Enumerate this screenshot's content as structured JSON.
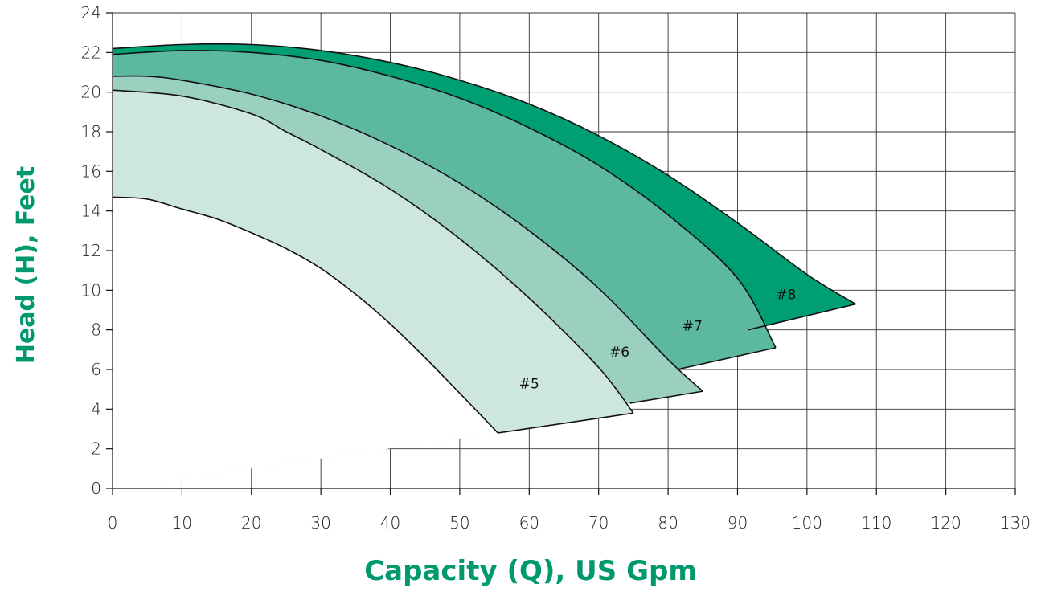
{
  "chart_data": {
    "type": "area",
    "title": "",
    "xlabel": "Capacity (Q), US Gpm",
    "ylabel": "Head (H), Feet",
    "xlim": [
      0,
      130
    ],
    "ylim": [
      0,
      24
    ],
    "x_ticks": [
      0,
      10,
      20,
      30,
      40,
      50,
      60,
      70,
      80,
      90,
      100,
      110,
      120,
      130
    ],
    "y_ticks": [
      0,
      2,
      4,
      6,
      8,
      10,
      12,
      14,
      16,
      18,
      20,
      22,
      24
    ],
    "grid": true,
    "series": [
      {
        "name": "#8",
        "color": "#009e73",
        "label_at": [
          97,
          9.8
        ],
        "upper": [
          [
            0,
            22.2
          ],
          [
            10,
            22.4
          ],
          [
            20,
            22.4
          ],
          [
            30,
            22.1
          ],
          [
            40,
            21.5
          ],
          [
            50,
            20.6
          ],
          [
            60,
            19.4
          ],
          [
            70,
            17.8
          ],
          [
            80,
            15.8
          ],
          [
            90,
            13.4
          ],
          [
            100,
            10.8
          ],
          [
            107,
            9.3
          ]
        ],
        "end_edge": [
          [
            107,
            9.3
          ],
          [
            91.5,
            8.0
          ]
        ]
      },
      {
        "name": "#7",
        "color": "#5cb9a0",
        "label_at": [
          83.5,
          8.2
        ],
        "upper": [
          [
            0,
            21.9
          ],
          [
            10,
            22.1
          ],
          [
            20,
            22.0
          ],
          [
            30,
            21.6
          ],
          [
            40,
            20.8
          ],
          [
            50,
            19.7
          ],
          [
            60,
            18.2
          ],
          [
            70,
            16.3
          ],
          [
            80,
            13.8
          ],
          [
            90,
            10.6
          ],
          [
            95.5,
            7.1
          ]
        ],
        "end_edge": [
          [
            95.5,
            7.1
          ],
          [
            81.3,
            6.0
          ]
        ]
      },
      {
        "name": "#6",
        "color": "#9bcfbf",
        "label_at": [
          73,
          6.9
        ],
        "upper": [
          [
            0,
            20.8
          ],
          [
            5,
            20.8
          ],
          [
            10,
            20.6
          ],
          [
            20,
            19.9
          ],
          [
            30,
            18.8
          ],
          [
            40,
            17.3
          ],
          [
            50,
            15.4
          ],
          [
            60,
            13.0
          ],
          [
            70,
            10.1
          ],
          [
            80,
            6.5
          ],
          [
            85,
            4.9
          ]
        ],
        "end_edge": [
          [
            85,
            4.9
          ],
          [
            74.5,
            4.3
          ]
        ]
      },
      {
        "name": "#5",
        "color": "#cde6de",
        "label_at": [
          60,
          5.3
        ],
        "upper": [
          [
            0,
            20.1
          ],
          [
            10,
            19.8
          ],
          [
            20,
            18.9
          ],
          [
            25,
            18.0
          ],
          [
            30,
            17.1
          ],
          [
            40,
            15.1
          ],
          [
            50,
            12.6
          ],
          [
            60,
            9.6
          ],
          [
            70,
            6.1
          ],
          [
            75,
            3.8
          ]
        ],
        "end_edge": [
          [
            75,
            3.8
          ],
          [
            55.5,
            2.8
          ]
        ]
      },
      {
        "name": "",
        "color": "#ffffff",
        "upper": [
          [
            0,
            14.7
          ],
          [
            5,
            14.6
          ],
          [
            10,
            14.1
          ],
          [
            15,
            13.6
          ],
          [
            20,
            12.9
          ],
          [
            25,
            12.1
          ],
          [
            30,
            11.1
          ],
          [
            35,
            9.8
          ],
          [
            40,
            8.3
          ],
          [
            45,
            6.6
          ],
          [
            50,
            4.8
          ],
          [
            55.5,
            2.8
          ]
        ]
      }
    ]
  }
}
